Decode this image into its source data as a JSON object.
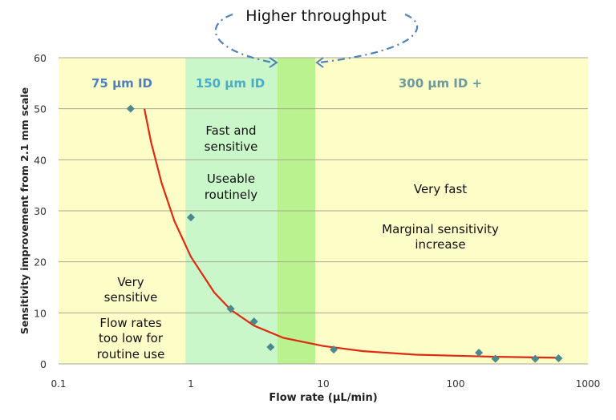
{
  "chart_data": {
    "type": "scatter",
    "title": "",
    "annotation_top": "Higher throughput",
    "xlabel": "Flow rate (µL/min)",
    "ylabel": "Sensitivity  improvement  from 2.1 mm scale",
    "x_scale": "log",
    "xlim": [
      0.1,
      1000
    ],
    "ylim": [
      0,
      60
    ],
    "xticks": [
      "0.1",
      "1",
      "10",
      "100",
      "1000"
    ],
    "xtick_values": [
      0.1,
      1,
      10,
      100,
      1000
    ],
    "yticks": [
      "0",
      "10",
      "20",
      "30",
      "40",
      "50",
      "60"
    ],
    "ytick_values": [
      0,
      10,
      20,
      30,
      40,
      50,
      60
    ],
    "grid": "horizontal",
    "bands": [
      {
        "from": 0.1,
        "to": 0.91,
        "color": "#fdfdc8",
        "label": "75 µm ID",
        "label_color": "#4f81bd",
        "notes": [
          "Very",
          "sensitive",
          "Flow rates",
          "too low for",
          "routine use"
        ]
      },
      {
        "from": 0.91,
        "to": 4.5,
        "color": "#c9f7c9",
        "label": "150 µm ID",
        "label_color": "#4aacc6",
        "notes": [
          "Fast and",
          "sensitive",
          "Useable",
          "routinely"
        ]
      },
      {
        "from": 4.5,
        "to": 8.7,
        "color": "#b9f28e",
        "label": "",
        "notes": []
      },
      {
        "from": 8.7,
        "to": 1000,
        "color": "#fdfdc8",
        "label": "300 µm ID +",
        "label_color": "#6f9a9a",
        "notes": [
          "Very fast",
          "Marginal sensitivity",
          "increase"
        ]
      }
    ],
    "points": {
      "color": "#4a8a8c",
      "x": [
        0.35,
        1.0,
        2.0,
        3.0,
        4.0,
        12,
        150,
        200,
        400,
        600
      ],
      "y": [
        50,
        28.7,
        10.8,
        8.3,
        3.3,
        2.8,
        2.2,
        1.0,
        1.0,
        1.1
      ]
    },
    "fit_curve": {
      "color": "#e02a10",
      "x": [
        0.445,
        0.5,
        0.6,
        0.75,
        1,
        1.5,
        2,
        3,
        5,
        10,
        20,
        50,
        100,
        200,
        600
      ],
      "y": [
        50,
        43.5,
        35.5,
        28,
        21,
        14,
        10.6,
        7.5,
        5.1,
        3.5,
        2.5,
        1.8,
        1.6,
        1.4,
        1.2
      ]
    },
    "arrow_color": "#4f81bd"
  }
}
